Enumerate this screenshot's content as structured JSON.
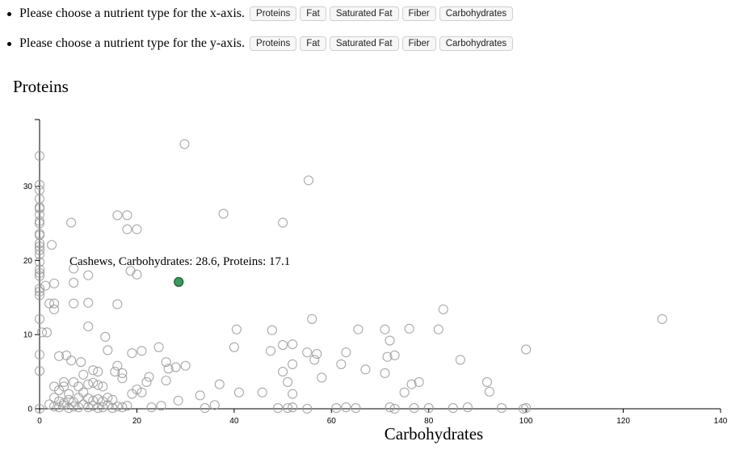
{
  "controls": {
    "x_prompt": "Please choose a nutrient type for the x-axis.",
    "y_prompt": "Please choose a nutrient type for the y-axis.",
    "options": [
      "Proteins",
      "Fat",
      "Saturated Fat",
      "Fiber",
      "Carbohydrates"
    ]
  },
  "chart_data": {
    "type": "scatter",
    "xlabel": "Carbohydrates",
    "ylabel": "Proteins",
    "xlim": [
      0,
      140
    ],
    "ylim": [
      0,
      39
    ],
    "x_ticks": [
      0,
      20,
      40,
      60,
      80,
      100,
      120,
      140
    ],
    "y_ticks": [
      0,
      10,
      20,
      30
    ],
    "highlight": {
      "label": "Cashews, Carbohydrates: 28.6, Proteins: 17.1",
      "x": 28.6,
      "y": 17.1,
      "color": "#3a9a5c"
    },
    "point_color": "#999999",
    "points": [
      [
        29.8,
        35.7
      ],
      [
        55.3,
        30.8
      ],
      [
        37.8,
        26.3
      ],
      [
        16,
        26.1
      ],
      [
        18,
        26.1
      ],
      [
        6.5,
        25.1
      ],
      [
        50,
        25.1
      ],
      [
        18,
        24.2
      ],
      [
        20,
        24.2
      ],
      [
        2.5,
        22.1
      ],
      [
        0,
        34.1
      ],
      [
        0,
        30.2
      ],
      [
        0,
        29.5
      ],
      [
        0,
        28.3
      ],
      [
        0,
        27.2
      ],
      [
        0,
        27
      ],
      [
        0,
        26.2
      ],
      [
        0,
        25.3
      ],
      [
        0,
        25
      ],
      [
        0,
        23.6
      ],
      [
        0,
        23.4
      ],
      [
        0,
        22.3
      ],
      [
        0,
        21.9
      ],
      [
        0,
        21.4
      ],
      [
        0,
        20.8
      ],
      [
        0,
        19.8
      ],
      [
        0,
        18.8
      ],
      [
        0,
        18.3
      ],
      [
        0,
        17.9
      ],
      [
        0,
        16.2
      ],
      [
        0,
        15.8
      ],
      [
        0,
        15.3
      ],
      [
        0,
        12.1
      ],
      [
        0,
        7.3
      ],
      [
        0,
        5.1
      ],
      [
        0,
        0
      ],
      [
        7,
        18.9
      ],
      [
        10,
        18
      ],
      [
        18.7,
        18.6
      ],
      [
        20,
        18.1
      ],
      [
        7,
        17
      ],
      [
        3,
        16.9
      ],
      [
        1.2,
        16.6
      ],
      [
        3,
        14.2
      ],
      [
        2,
        14.2
      ],
      [
        7,
        14.2
      ],
      [
        10,
        14.3
      ],
      [
        16,
        14.1
      ],
      [
        3,
        13.4
      ],
      [
        10,
        11.1
      ],
      [
        0.5,
        10.3
      ],
      [
        1.5,
        10.3
      ],
      [
        13.5,
        9.7
      ],
      [
        14,
        7.9
      ],
      [
        4,
        7.1
      ],
      [
        5.5,
        7.2
      ],
      [
        6.5,
        6.5
      ],
      [
        8.5,
        6.3
      ],
      [
        16,
        5.8
      ],
      [
        17,
        4.8
      ],
      [
        17,
        4.1
      ],
      [
        11,
        5.2
      ],
      [
        12,
        5
      ],
      [
        15.5,
        5
      ],
      [
        9,
        4.6
      ],
      [
        7,
        3.6
      ],
      [
        5,
        3.6
      ],
      [
        5,
        3
      ],
      [
        3,
        3
      ],
      [
        4,
        2.5
      ],
      [
        6,
        2
      ],
      [
        8,
        3
      ],
      [
        10,
        3.3
      ],
      [
        11,
        3.5
      ],
      [
        12,
        3.2
      ],
      [
        13,
        3
      ],
      [
        9,
        2.2
      ],
      [
        8,
        1.5
      ],
      [
        10,
        1.4
      ],
      [
        11,
        1.1
      ],
      [
        12,
        1.3
      ],
      [
        13,
        1
      ],
      [
        14,
        1.5
      ],
      [
        15,
        1.2
      ],
      [
        3,
        1.5
      ],
      [
        4,
        1
      ],
      [
        5,
        0.8
      ],
      [
        6,
        1.2
      ],
      [
        7,
        0.9
      ],
      [
        2,
        0.6
      ],
      [
        3,
        0.3
      ],
      [
        4,
        0.2
      ],
      [
        5,
        0.5
      ],
      [
        6,
        0.1
      ],
      [
        7,
        0.3
      ],
      [
        8,
        0.2
      ],
      [
        9,
        0.6
      ],
      [
        10,
        0.2
      ],
      [
        11,
        0.4
      ],
      [
        12,
        0.1
      ],
      [
        13,
        0.2
      ],
      [
        14,
        0.5
      ],
      [
        15,
        0.1
      ],
      [
        16,
        0.3
      ],
      [
        17,
        0.2
      ],
      [
        18,
        0.4
      ],
      [
        19,
        2
      ],
      [
        20,
        2.6
      ],
      [
        21,
        2.2
      ],
      [
        22,
        3.6
      ],
      [
        22.5,
        4.3
      ],
      [
        21,
        7.8
      ],
      [
        19,
        7.5
      ],
      [
        24.5,
        8.3
      ],
      [
        26,
        6.3
      ],
      [
        26.5,
        5.4
      ],
      [
        28,
        5.6
      ],
      [
        30,
        5.8
      ],
      [
        26,
        3.8
      ],
      [
        25,
        0.4
      ],
      [
        28.5,
        1.1
      ],
      [
        23,
        0.2
      ],
      [
        33,
        1.8
      ],
      [
        34,
        0.1
      ],
      [
        36,
        0.5
      ],
      [
        37,
        3.3
      ],
      [
        40,
        8.3
      ],
      [
        40.5,
        10.7
      ],
      [
        41,
        2.2
      ],
      [
        45.8,
        2.2
      ],
      [
        47.8,
        10.6
      ],
      [
        47.5,
        7.8
      ],
      [
        50,
        8.6
      ],
      [
        52,
        8.7
      ],
      [
        52,
        6
      ],
      [
        50,
        5
      ],
      [
        51,
        3.6
      ],
      [
        52,
        2
      ],
      [
        49,
        0.1
      ],
      [
        51,
        0.1
      ],
      [
        52,
        0.2
      ],
      [
        55,
        0
      ],
      [
        55,
        7.6
      ],
      [
        56,
        12.1
      ],
      [
        56.5,
        6.6
      ],
      [
        57,
        7.4
      ],
      [
        58,
        4.2
      ],
      [
        62,
        6
      ],
      [
        63,
        7.6
      ],
      [
        61,
        0.1
      ],
      [
        63,
        0.2
      ],
      [
        65,
        0.1
      ],
      [
        65.5,
        10.7
      ],
      [
        67,
        5.3
      ],
      [
        71,
        10.7
      ],
      [
        71.5,
        7
      ],
      [
        71,
        4.8
      ],
      [
        72,
        9.2
      ],
      [
        73,
        7.2
      ],
      [
        72,
        0.2
      ],
      [
        73,
        0
      ],
      [
        75,
        2.2
      ],
      [
        76,
        10.8
      ],
      [
        76.5,
        3.3
      ],
      [
        78,
        3.6
      ],
      [
        77,
        0.1
      ],
      [
        80,
        0.1
      ],
      [
        82,
        10.7
      ],
      [
        83,
        13.4
      ],
      [
        85,
        0.1
      ],
      [
        86.5,
        6.6
      ],
      [
        88,
        0.2
      ],
      [
        92,
        3.6
      ],
      [
        92.5,
        2.3
      ],
      [
        95,
        0.1
      ],
      [
        99.5,
        0
      ],
      [
        100,
        0.1
      ],
      [
        100,
        8
      ],
      [
        128,
        12.1
      ]
    ]
  }
}
